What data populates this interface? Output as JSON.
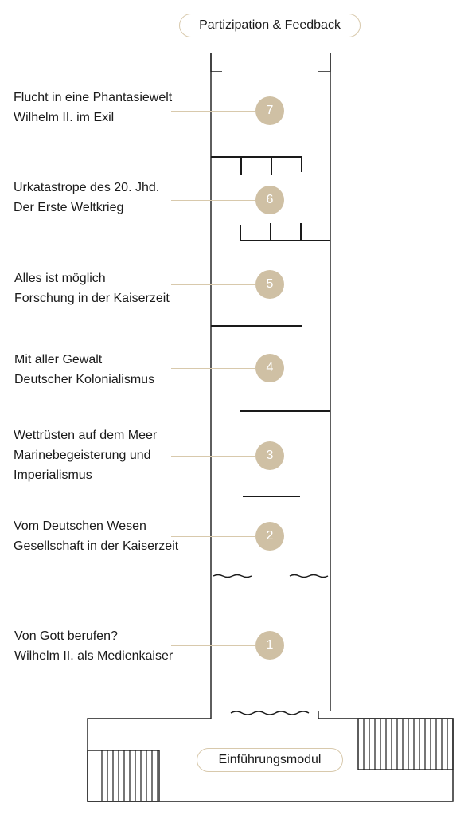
{
  "top_module": {
    "label": "Partizipation & Feedback"
  },
  "bottom_module": {
    "label": "Einführungsmodul"
  },
  "sections": [
    {
      "number": "7",
      "line1": "Flucht in eine Phantasiewelt",
      "line2": "Wilhelm II. im Exil"
    },
    {
      "number": "6",
      "line1": "Urkatastrope des 20. Jhd.",
      "line2": "Der Erste Weltkrieg"
    },
    {
      "number": "5",
      "line1": "Alles ist möglich",
      "line2": "Forschung in der Kaiserzeit"
    },
    {
      "number": "4",
      "line1": "Mit aller Gewalt",
      "line2": "Deutscher Kolonialismus"
    },
    {
      "number": "3",
      "line1": "Wettrüsten auf dem Meer",
      "line2": "Marinebegeisterung und",
      "line3": "Imperialismus"
    },
    {
      "number": "2",
      "line1": "Vom Deutschen Wesen",
      "line2": "Gesellschaft in der Kaiserzeit"
    },
    {
      "number": "1",
      "line1": "Von Gott berufen?",
      "line2": "Wilhelm II. als Medienkaiser"
    }
  ]
}
